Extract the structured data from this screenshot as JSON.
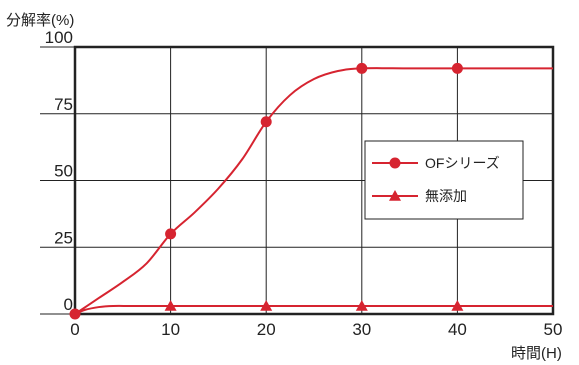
{
  "chart_data": {
    "type": "line",
    "ylabel": "分解率(%)",
    "xlabel": "時間(H)",
    "xlim": [
      0,
      50
    ],
    "ylim": [
      0,
      100
    ],
    "x_ticks": [
      0,
      10,
      20,
      30,
      40,
      50
    ],
    "y_ticks": [
      0,
      25,
      50,
      75,
      100
    ],
    "grid": true,
    "legend_position": "right",
    "series": [
      {
        "name": "OFシリーズ",
        "marker": "circle",
        "points": [
          [
            0,
            0
          ],
          [
            10,
            30
          ],
          [
            20,
            72
          ],
          [
            30,
            92
          ],
          [
            40,
            92
          ]
        ],
        "curve": [
          [
            0,
            0
          ],
          [
            2.5,
            6
          ],
          [
            5,
            12
          ],
          [
            7.5,
            19
          ],
          [
            10,
            30
          ],
          [
            12.5,
            38
          ],
          [
            15,
            47
          ],
          [
            17.5,
            58
          ],
          [
            20,
            72
          ],
          [
            22.5,
            82
          ],
          [
            25,
            88
          ],
          [
            27.5,
            91
          ],
          [
            30,
            92
          ],
          [
            35,
            92
          ],
          [
            40,
            92
          ],
          [
            45,
            92
          ],
          [
            50,
            92
          ]
        ]
      },
      {
        "name": "無添加",
        "marker": "triangle",
        "points": [
          [
            10,
            3
          ],
          [
            20,
            3
          ],
          [
            30,
            3
          ],
          [
            40,
            3
          ]
        ],
        "curve": [
          [
            0,
            0
          ],
          [
            1,
            1.5
          ],
          [
            2.5,
            2.6
          ],
          [
            4,
            3
          ],
          [
            6,
            3
          ],
          [
            10,
            3
          ],
          [
            20,
            3
          ],
          [
            30,
            3
          ],
          [
            40,
            3
          ],
          [
            50,
            3
          ]
        ]
      }
    ],
    "colors": {
      "series": "#d62430",
      "grid": "#222222",
      "frame": "#222222"
    }
  }
}
